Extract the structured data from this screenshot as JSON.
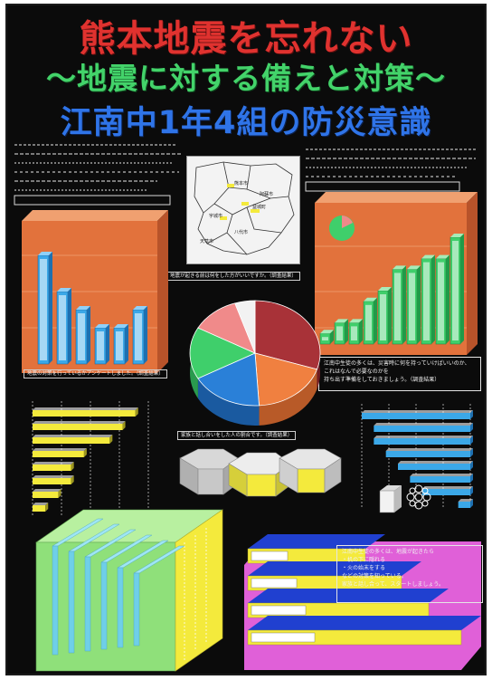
{
  "titles": {
    "line1": "熊本地震を忘れない",
    "line2": "〜地震に対する備えと対策〜",
    "line3": "江南中1年4組の防災意識"
  },
  "colors": {
    "background": "#0b0b0b",
    "title_red": "#e0322f",
    "title_green": "#43d36a",
    "title_blue": "#2f74e8",
    "panel_orange": "#e2723c",
    "bar_blue": "#3ba8e8",
    "bar_green": "#3fcf6b",
    "pie_red": "#a83238",
    "pie_orange": "#f08040",
    "pie_blue": "#2a80d8",
    "pie_green": "#3fcf6b",
    "pie_pink": "#f08a8a",
    "hbar_yellow": "#f4ea3c",
    "cube_green": "#8fe07a",
    "cube_yellow": "#f4ea3c",
    "stairs_blue": "#2040d0",
    "stairs_yellow": "#f4ea3c",
    "stairs_pink": "#e060d8"
  },
  "map": {
    "caption": "",
    "labels": [
      "熊本市",
      "阿蘇市",
      "益城町",
      "宇城市",
      "八代市",
      "天草市"
    ]
  },
  "captions": {
    "left_chart": "地震の対策を行っているかアンケートしました。（調査結果）",
    "map": "地震が起きる前は何をした方がいいですか。（調査結果）",
    "pie": "家族と話し合いをした人の割合です。（調査結果）",
    "hexes": "",
    "left_hbar": "",
    "right_hbar": ""
  },
  "text_blocks": {
    "top_left": "",
    "top_right": "",
    "right_mid_box": "江南中生徒の多くは、災害時に何を持っていけばいいのか、\nこれはなんで必要なのかを\n持ち出す準備をしておきましょう。（調査結果）",
    "bottom_right_box": "江南中生徒の多くは、地震が起きたら\n・机の下に隠れる\n・火の始末をする\nなどの対策を知っている。\n家族と話し合って、スタートしましょう。"
  },
  "charts": {
    "left_bars": [
      6,
      4,
      3,
      2,
      2,
      3
    ],
    "left_bar_labels": [
      "",
      "",
      "",
      "",
      "",
      ""
    ],
    "right_bars": [
      1,
      2,
      2,
      4,
      5,
      7,
      7,
      8,
      8,
      10
    ],
    "right_bar_labels": [
      "",
      "",
      "",
      "",
      "",
      "",
      "",
      "",
      "",
      ""
    ],
    "pie_values": [
      30,
      19,
      18,
      16,
      12,
      5
    ],
    "pie_labels": [
      "",
      "",
      "",
      "",
      "",
      ""
    ],
    "left_hbar_values": [
      8,
      7,
      6,
      4,
      3,
      3,
      2,
      1
    ],
    "right_hbar_values": [
      9,
      8,
      8,
      7,
      6,
      5,
      4,
      1
    ],
    "stairs_labels": [
      "",
      "",
      "",
      ""
    ]
  }
}
